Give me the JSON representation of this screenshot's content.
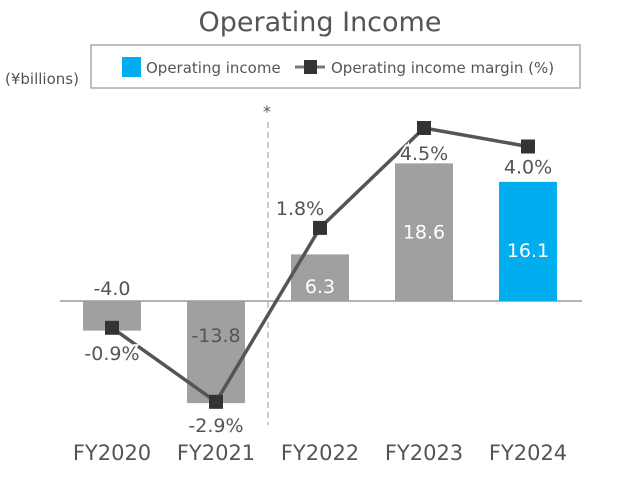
{
  "chart_data": {
    "type": "bar+line",
    "title": "Operating Income",
    "ylabel": "(¥billions)",
    "annotation": "*",
    "categories": [
      "FY2020",
      "FY2021",
      "FY2022",
      "FY2023",
      "FY2024"
    ],
    "series": [
      {
        "name": "Operating income",
        "type": "bar",
        "values": [
          -4.0,
          -13.8,
          6.3,
          18.6,
          16.1
        ],
        "labels": [
          "-4.0",
          "-13.8",
          "6.3",
          "18.6",
          "16.1"
        ]
      },
      {
        "name": "Operating income margin (%)",
        "type": "line",
        "values": [
          -0.9,
          -2.9,
          1.8,
          4.5,
          4.0
        ],
        "labels": [
          "-0.9%",
          "-2.9%",
          "1.8%",
          "4.5%",
          "4.0%"
        ]
      }
    ],
    "legend": "top",
    "grid": false,
    "colors": {
      "bar": "#a0a0a0",
      "highlight_bar": "#00aeef",
      "line": "#555555",
      "marker": "#333333"
    }
  }
}
